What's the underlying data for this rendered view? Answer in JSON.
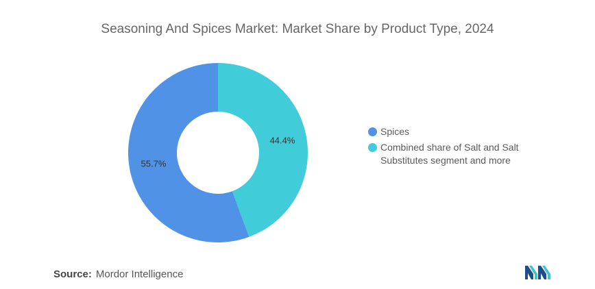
{
  "title": "Seasoning And Spices Market: Market Share by Product Type, 2024",
  "chart_data": {
    "type": "pie",
    "variant": "donut",
    "title": "Seasoning And Spices Market: Market Share by Product Type, 2024",
    "slices": [
      {
        "label": "Spices",
        "value": 55.7,
        "display": "55.7%",
        "color": "#4f92e6"
      },
      {
        "label": "Combined share of Salt and Salt Substitutes segment and more",
        "value": 44.4,
        "display": "44.4%",
        "color": "#40ccd9"
      }
    ],
    "legend": "right"
  },
  "source": {
    "label": "Source:",
    "text": "Mordor Intelligence"
  },
  "logo": {
    "icon": "mordor-intelligence-logo-icon",
    "colors": [
      "#1d4d8c",
      "#3fc3cf"
    ]
  }
}
